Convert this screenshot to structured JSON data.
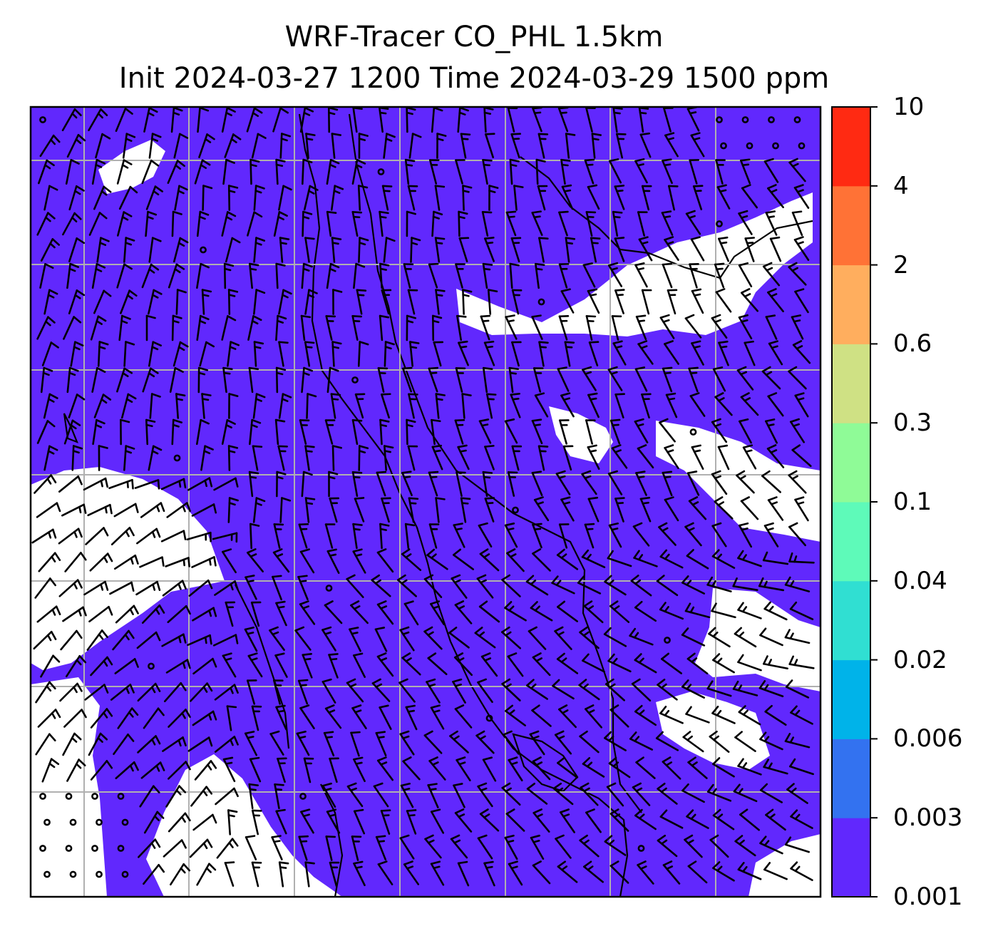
{
  "title_line1": "WRF-Tracer CO_PHL 1.5km",
  "title_line2": "Init 2024-03-27 1200 Time 2024-03-29 1500 ppm",
  "colorbar": {
    "levels": [
      "0.001",
      "0.003",
      "0.006",
      "0.02",
      "0.04",
      "0.1",
      "0.3",
      "0.6",
      "2",
      "4",
      "10"
    ],
    "colors": [
      "#6128fd",
      "#3372f0",
      "#00b3e9",
      "#30dfd2",
      "#5efab9",
      "#8ffb97",
      "#cfe184",
      "#ffae5e",
      "#ff7236",
      "#ff2a12"
    ]
  },
  "map": {
    "background_field_color": "#6128fd",
    "below_min_color": "#ffffff",
    "grid_color": "#b0b0b0",
    "coastline_color": "#000000",
    "barb_color": "#000000"
  }
}
